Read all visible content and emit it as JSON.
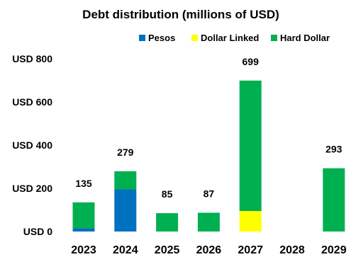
{
  "chart_data": {
    "type": "bar",
    "stacked": true,
    "title": "Debt distribution (millions of USD)",
    "categories": [
      "2023",
      "2024",
      "2025",
      "2026",
      "2027",
      "2028",
      "2029"
    ],
    "series": [
      {
        "name": "Pesos",
        "color": "#0070c0",
        "values": [
          15,
          195,
          0,
          0,
          0,
          0,
          0
        ]
      },
      {
        "name": "Dollar Linked",
        "color": "#ffff00",
        "values": [
          0,
          0,
          0,
          0,
          95,
          0,
          0
        ]
      },
      {
        "name": "Hard Dollar",
        "color": "#00b050",
        "values": [
          120,
          84,
          85,
          87,
          604,
          0,
          293
        ]
      }
    ],
    "totals": [
      "135",
      "279",
      "85",
      "87",
      "699",
      "",
      "293"
    ],
    "yticks": [
      {
        "value": 0,
        "label": "USD 0"
      },
      {
        "value": 200,
        "label": "USD 200"
      },
      {
        "value": 400,
        "label": "USD 400"
      },
      {
        "value": 600,
        "label": "USD 600"
      },
      {
        "value": 800,
        "label": "USD 800"
      }
    ],
    "ylim": [
      0,
      800
    ],
    "grid": false,
    "legend_position": "top"
  }
}
